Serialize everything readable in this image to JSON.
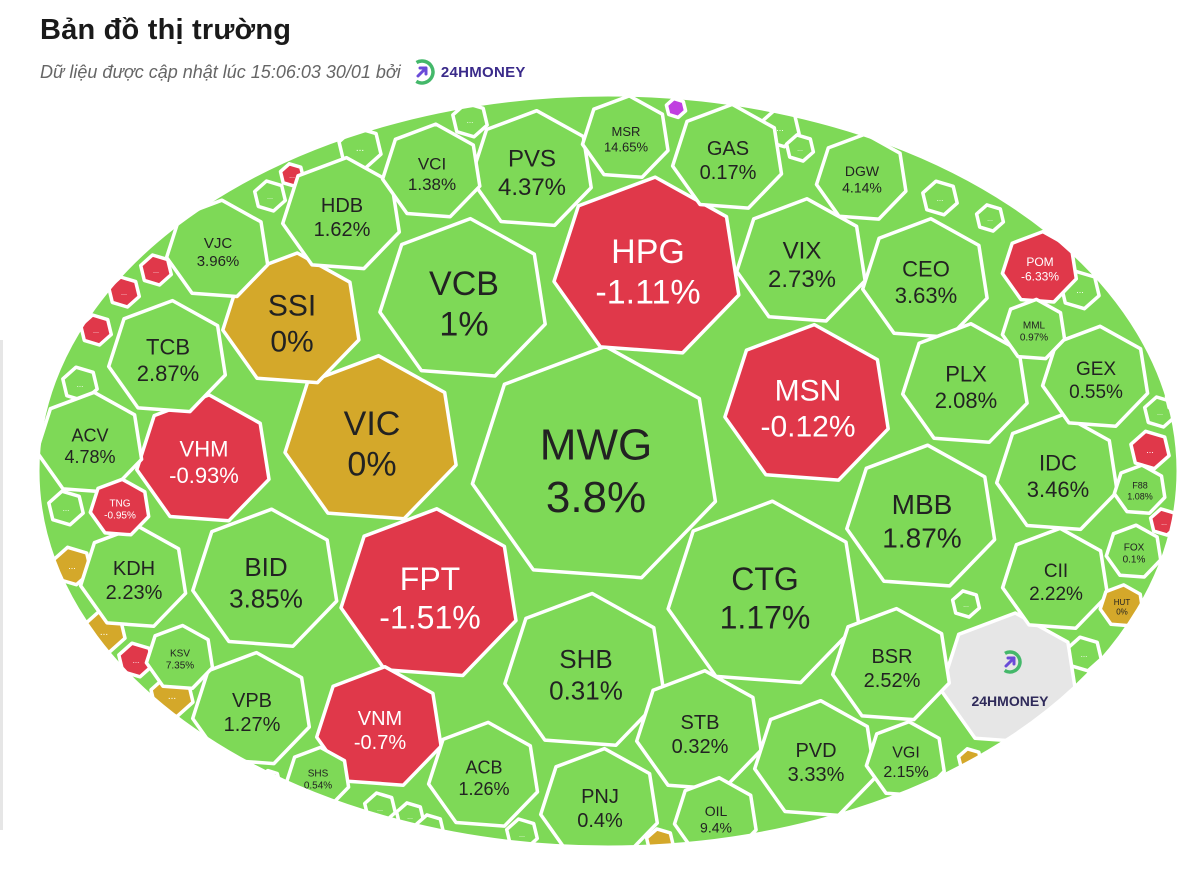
{
  "header": {
    "title": "Bản đồ thị trường",
    "subtitle": "Dữ liệu được cập nhật lúc 15:06:03 30/01 bởi",
    "brand": "24HMONEY"
  },
  "colors": {
    "up": "#7ed957",
    "down": "#e0384a",
    "flat": "#d4a82a",
    "brand_cell": "#e6e6e6",
    "border": "#ffffff",
    "small_up": "#8fd866",
    "purple": "#c040e0"
  },
  "map": {
    "brand_cell_label": "24HMONEY",
    "more_label": "...",
    "tickers": [
      {
        "symbol": "MWG",
        "change": "3.8%",
        "status": "up"
      },
      {
        "symbol": "HPG",
        "change": "-1.11%",
        "status": "down"
      },
      {
        "symbol": "VCB",
        "change": "1%",
        "status": "up"
      },
      {
        "symbol": "VIC",
        "change": "0%",
        "status": "flat"
      },
      {
        "symbol": "SSI",
        "change": "0%",
        "status": "flat"
      },
      {
        "symbol": "FPT",
        "change": "-1.51%",
        "status": "down"
      },
      {
        "symbol": "CTG",
        "change": "1.17%",
        "status": "up"
      },
      {
        "symbol": "MSN",
        "change": "-0.12%",
        "status": "down"
      },
      {
        "symbol": "SHB",
        "change": "0.31%",
        "status": "up"
      },
      {
        "symbol": "MBB",
        "change": "1.87%",
        "status": "up"
      },
      {
        "symbol": "BID",
        "change": "3.85%",
        "status": "up"
      },
      {
        "symbol": "VHM",
        "change": "-0.93%",
        "status": "down"
      },
      {
        "symbol": "VNM",
        "change": "-0.7%",
        "status": "down"
      },
      {
        "symbol": "VIX",
        "change": "2.73%",
        "status": "up"
      },
      {
        "symbol": "CEO",
        "change": "3.63%",
        "status": "up"
      },
      {
        "symbol": "PLX",
        "change": "2.08%",
        "status": "up"
      },
      {
        "symbol": "IDC",
        "change": "3.46%",
        "status": "up"
      },
      {
        "symbol": "TCB",
        "change": "2.87%",
        "status": "up"
      },
      {
        "symbol": "HDB",
        "change": "1.62%",
        "status": "up"
      },
      {
        "symbol": "PVS",
        "change": "4.37%",
        "status": "up"
      },
      {
        "symbol": "STB",
        "change": "0.32%",
        "status": "up"
      },
      {
        "symbol": "PVD",
        "change": "3.33%",
        "status": "up"
      },
      {
        "symbol": "BSR",
        "change": "2.52%",
        "status": "up"
      },
      {
        "symbol": "VPB",
        "change": "1.27%",
        "status": "up"
      },
      {
        "symbol": "KDH",
        "change": "2.23%",
        "status": "up"
      },
      {
        "symbol": "ACV",
        "change": "4.78%",
        "status": "up"
      },
      {
        "symbol": "GEX",
        "change": "0.55%",
        "status": "up"
      },
      {
        "symbol": "CII",
        "change": "2.22%",
        "status": "up"
      },
      {
        "symbol": "ACB",
        "change": "1.26%",
        "status": "up"
      },
      {
        "symbol": "PNJ",
        "change": "0.4%",
        "status": "up"
      },
      {
        "symbol": "GAS",
        "change": "0.17%",
        "status": "up"
      },
      {
        "symbol": "VCI",
        "change": "1.38%",
        "status": "up"
      },
      {
        "symbol": "VJC",
        "change": "3.96%",
        "status": "up"
      },
      {
        "symbol": "DGW",
        "change": "4.14%",
        "status": "up"
      },
      {
        "symbol": "MSR",
        "change": "14.65%",
        "status": "up"
      },
      {
        "symbol": "VGI",
        "change": "2.15%",
        "status": "up"
      },
      {
        "symbol": "OIL",
        "change": "9.4%",
        "status": "up"
      },
      {
        "symbol": "POM",
        "change": "-6.33%",
        "status": "down"
      },
      {
        "symbol": "MML",
        "change": "0.97%",
        "status": "up"
      },
      {
        "symbol": "KSV",
        "change": "7.35%",
        "status": "up"
      },
      {
        "symbol": "SHS",
        "change": "0.54%",
        "status": "up"
      },
      {
        "symbol": "TNG",
        "change": "-0.95%",
        "status": "down"
      },
      {
        "symbol": "F88",
        "change": "1.08%",
        "status": "up"
      },
      {
        "symbol": "FOX",
        "change": "0.1%",
        "status": "up"
      },
      {
        "symbol": "HUT",
        "change": "0%",
        "status": "flat"
      }
    ]
  }
}
